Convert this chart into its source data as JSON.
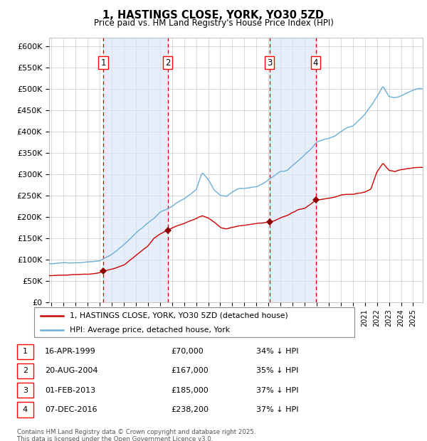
{
  "title": "1, HASTINGS CLOSE, YORK, YO30 5ZD",
  "subtitle": "Price paid vs. HM Land Registry's House Price Index (HPI)",
  "ylim": [
    0,
    620000
  ],
  "yticks": [
    0,
    50000,
    100000,
    150000,
    200000,
    250000,
    300000,
    350000,
    400000,
    450000,
    500000,
    550000,
    600000
  ],
  "ytick_labels": [
    "£0",
    "£50K",
    "£100K",
    "£150K",
    "£200K",
    "£250K",
    "£300K",
    "£350K",
    "£400K",
    "£450K",
    "£500K",
    "£550K",
    "£600K"
  ],
  "hpi_color": "#6baed6",
  "price_color": "#cc0000",
  "marker_color": "#8b0000",
  "vline_color": "#cc0000",
  "span_color": "#d6e4f5",
  "purchases": [
    {
      "date_num": 1999.29,
      "price": 70000,
      "label": "1"
    },
    {
      "date_num": 2004.64,
      "price": 167000,
      "label": "2"
    },
    {
      "date_num": 2013.08,
      "price": 185000,
      "label": "3"
    },
    {
      "date_num": 2016.92,
      "price": 238200,
      "label": "4"
    }
  ],
  "hpi_keypoints": [
    [
      1995.0,
      90000
    ],
    [
      1996.0,
      93000
    ],
    [
      1997.0,
      95000
    ],
    [
      1998.0,
      98000
    ],
    [
      1999.0,
      100000
    ],
    [
      2000.0,
      115000
    ],
    [
      2001.0,
      138000
    ],
    [
      2002.0,
      165000
    ],
    [
      2003.0,
      190000
    ],
    [
      2003.5,
      200000
    ],
    [
      2004.0,
      215000
    ],
    [
      2004.5,
      222000
    ],
    [
      2005.0,
      230000
    ],
    [
      2005.5,
      240000
    ],
    [
      2006.0,
      248000
    ],
    [
      2006.5,
      258000
    ],
    [
      2007.0,
      270000
    ],
    [
      2007.5,
      310000
    ],
    [
      2008.0,
      295000
    ],
    [
      2008.5,
      270000
    ],
    [
      2009.0,
      258000
    ],
    [
      2009.5,
      255000
    ],
    [
      2010.0,
      265000
    ],
    [
      2010.5,
      272000
    ],
    [
      2011.0,
      272000
    ],
    [
      2011.5,
      275000
    ],
    [
      2012.0,
      278000
    ],
    [
      2012.5,
      285000
    ],
    [
      2013.0,
      295000
    ],
    [
      2013.5,
      305000
    ],
    [
      2014.0,
      315000
    ],
    [
      2014.5,
      318000
    ],
    [
      2015.0,
      330000
    ],
    [
      2015.5,
      342000
    ],
    [
      2016.0,
      355000
    ],
    [
      2016.5,
      368000
    ],
    [
      2017.0,
      385000
    ],
    [
      2017.5,
      390000
    ],
    [
      2018.0,
      393000
    ],
    [
      2018.5,
      398000
    ],
    [
      2019.0,
      408000
    ],
    [
      2019.5,
      418000
    ],
    [
      2020.0,
      422000
    ],
    [
      2020.5,
      435000
    ],
    [
      2021.0,
      450000
    ],
    [
      2021.5,
      468000
    ],
    [
      2022.0,
      490000
    ],
    [
      2022.5,
      515000
    ],
    [
      2023.0,
      490000
    ],
    [
      2023.5,
      488000
    ],
    [
      2024.0,
      492000
    ],
    [
      2024.5,
      500000
    ],
    [
      2025.4,
      510000
    ]
  ],
  "price_keypoints": [
    [
      1995.0,
      62000
    ],
    [
      1996.0,
      62500
    ],
    [
      1997.0,
      63000
    ],
    [
      1998.0,
      64000
    ],
    [
      1998.5,
      65000
    ],
    [
      1999.0,
      67000
    ],
    [
      1999.29,
      70000
    ],
    [
      2000.0,
      75000
    ],
    [
      2001.0,
      85000
    ],
    [
      2002.0,
      108000
    ],
    [
      2003.0,
      130000
    ],
    [
      2003.5,
      148000
    ],
    [
      2004.0,
      158000
    ],
    [
      2004.64,
      167000
    ],
    [
      2005.0,
      172000
    ],
    [
      2005.5,
      178000
    ],
    [
      2006.0,
      182000
    ],
    [
      2006.5,
      188000
    ],
    [
      2007.0,
      193000
    ],
    [
      2007.5,
      200000
    ],
    [
      2008.0,
      195000
    ],
    [
      2008.5,
      185000
    ],
    [
      2009.0,
      172000
    ],
    [
      2009.5,
      168000
    ],
    [
      2010.0,
      172000
    ],
    [
      2010.5,
      176000
    ],
    [
      2011.0,
      178000
    ],
    [
      2011.5,
      180000
    ],
    [
      2012.0,
      182000
    ],
    [
      2012.5,
      183000
    ],
    [
      2013.0,
      185000
    ],
    [
      2013.08,
      185000
    ],
    [
      2013.5,
      188000
    ],
    [
      2014.0,
      195000
    ],
    [
      2014.5,
      200000
    ],
    [
      2015.0,
      208000
    ],
    [
      2015.5,
      215000
    ],
    [
      2016.0,
      218000
    ],
    [
      2016.5,
      228000
    ],
    [
      2016.92,
      238200
    ],
    [
      2017.0,
      238500
    ],
    [
      2017.5,
      240000
    ],
    [
      2018.0,
      242000
    ],
    [
      2018.5,
      245000
    ],
    [
      2019.0,
      250000
    ],
    [
      2019.5,
      252000
    ],
    [
      2020.0,
      252000
    ],
    [
      2020.5,
      255000
    ],
    [
      2021.0,
      258000
    ],
    [
      2021.5,
      265000
    ],
    [
      2022.0,
      305000
    ],
    [
      2022.5,
      325000
    ],
    [
      2023.0,
      308000
    ],
    [
      2023.5,
      305000
    ],
    [
      2024.0,
      310000
    ],
    [
      2024.5,
      312000
    ],
    [
      2025.4,
      315000
    ]
  ],
  "legend_entries": [
    {
      "label": "1, HASTINGS CLOSE, YORK, YO30 5ZD (detached house)",
      "color": "#cc0000"
    },
    {
      "label": "HPI: Average price, detached house, York",
      "color": "#6baed6"
    }
  ],
  "table_rows": [
    {
      "num": "1",
      "date": "16-APR-1999",
      "price": "£70,000",
      "hpi": "34% ↓ HPI"
    },
    {
      "num": "2",
      "date": "20-AUG-2004",
      "price": "£167,000",
      "hpi": "35% ↓ HPI"
    },
    {
      "num": "3",
      "date": "01-FEB-2013",
      "price": "£185,000",
      "hpi": "37% ↓ HPI"
    },
    {
      "num": "4",
      "date": "07-DEC-2016",
      "price": "£238,200",
      "hpi": "37% ↓ HPI"
    }
  ],
  "footnote": "Contains HM Land Registry data © Crown copyright and database right 2025.\nThis data is licensed under the Open Government Licence v3.0.",
  "xlim_start": 1994.8,
  "xlim_end": 2025.8
}
